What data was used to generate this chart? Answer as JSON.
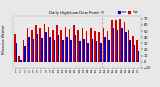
{
  "title": "Daily High/Low Dew Point °F",
  "left_label": "Milwaukee Weather",
  "high_color": "#cc0000",
  "low_color": "#0000cc",
  "background_color": "#e8e8e8",
  "plot_bg": "#e8e8e8",
  "ylim": [
    -10,
    75
  ],
  "yticks": [
    -10,
    0,
    10,
    20,
    30,
    40,
    50,
    60,
    70
  ],
  "days": [
    "1",
    "2",
    "3",
    "4",
    "5",
    "6",
    "7",
    "8",
    "9",
    "10",
    "11",
    "12",
    "13",
    "14",
    "15",
    "16",
    "17",
    "18",
    "19",
    "20",
    "21",
    "22",
    "23",
    "24",
    "25",
    "26",
    "27",
    "28",
    "29",
    "30"
  ],
  "highs": [
    45,
    9,
    36,
    55,
    52,
    60,
    55,
    62,
    56,
    52,
    60,
    52,
    57,
    54,
    60,
    52,
    55,
    50,
    55,
    50,
    48,
    55,
    50,
    68,
    68,
    70,
    65,
    52,
    42,
    35
  ],
  "lows": [
    30,
    2,
    25,
    40,
    37,
    45,
    39,
    48,
    40,
    36,
    44,
    36,
    40,
    36,
    43,
    34,
    37,
    30,
    37,
    33,
    30,
    40,
    35,
    55,
    52,
    55,
    48,
    35,
    27,
    18
  ]
}
